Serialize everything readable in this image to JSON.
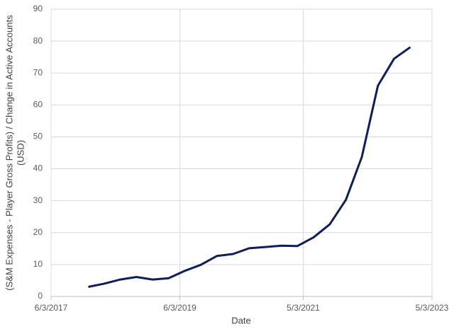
{
  "chart_data": {
    "type": "line",
    "xlabel": "Date",
    "ylabel": [
      "(S&M Expenses - Player Gross Profits) / Change in Active Accounts",
      "(USD)"
    ],
    "x": [
      "2017-12-31",
      "2018-03-31",
      "2018-06-30",
      "2018-09-30",
      "2018-12-31",
      "2019-03-31",
      "2019-06-30",
      "2019-09-30",
      "2019-12-31",
      "2020-03-31",
      "2020-06-30",
      "2020-09-30",
      "2020-12-31",
      "2021-03-31",
      "2021-06-30",
      "2021-09-30",
      "2021-12-31",
      "2022-03-31",
      "2022-06-30",
      "2022-09-30",
      "2022-12-31"
    ],
    "series": [
      {
        "color": "#0c1f5c",
        "values": [
          3.0,
          4.0,
          5.3,
          6.1,
          5.3,
          5.7,
          8.0,
          9.9,
          12.7,
          13.3,
          15.1,
          15.5,
          15.9,
          15.8,
          18.5,
          22.6,
          30.3,
          43.7,
          66.0,
          74.5,
          78.1
        ]
      }
    ],
    "xlim": [
      "2017-06-03",
      "2023-05-03"
    ],
    "xticks": [
      {
        "value": "2017-06-03",
        "label": "6/3/2017"
      },
      {
        "value": "2019-06-03",
        "label": "6/3/2019"
      },
      {
        "value": "2021-05-03",
        "label": "5/3/2021"
      },
      {
        "value": "2023-05-03",
        "label": "5/3/2023"
      }
    ],
    "ylim": [
      0,
      90
    ],
    "yticks": [
      0,
      10,
      20,
      30,
      40,
      50,
      60,
      70,
      80,
      90
    ],
    "grid": true
  }
}
